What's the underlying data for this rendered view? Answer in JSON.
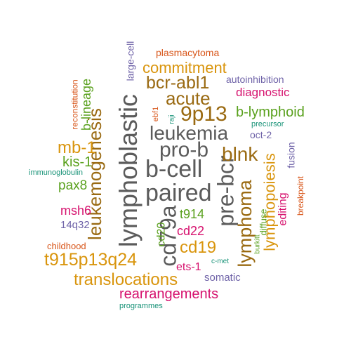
{
  "colors": {
    "gray": "#5b5b5b",
    "gold": "#d9950d",
    "brown": "#9a6a12",
    "green": "#5aa11e",
    "magenta": "#d6126e",
    "purple": "#6f63a8",
    "orange": "#d8561a",
    "teal": "#199378"
  },
  "words": [
    {
      "text": "paired",
      "color": "gray"
    },
    {
      "text": "b-cell",
      "color": "gray"
    },
    {
      "text": "pro-b",
      "color": "gray"
    },
    {
      "text": "leukemia",
      "color": "gray"
    },
    {
      "text": "lymphoblastic",
      "color": "gray"
    },
    {
      "text": "cd79a",
      "color": "gray"
    },
    {
      "text": "pre-bcr",
      "color": "gray"
    },
    {
      "text": "leukemogenesis",
      "color": "brown"
    },
    {
      "text": "lymphoma",
      "color": "brown"
    },
    {
      "text": "blnk",
      "color": "brown"
    },
    {
      "text": "9p13",
      "color": "brown"
    },
    {
      "text": "acute",
      "color": "brown"
    },
    {
      "text": "bcr-abl1",
      "color": "brown"
    },
    {
      "text": "commitment",
      "color": "gold"
    },
    {
      "text": "translocations",
      "color": "gold"
    },
    {
      "text": "t915p13q24",
      "color": "gold"
    },
    {
      "text": "cd19",
      "color": "gold"
    },
    {
      "text": "mb-1",
      "color": "gold"
    },
    {
      "text": "lymphopoiesis",
      "color": "gold"
    },
    {
      "text": "rearrangements",
      "color": "magenta"
    },
    {
      "text": "kis-1",
      "color": "green"
    },
    {
      "text": "pax8",
      "color": "green"
    },
    {
      "text": "b-lymphoid",
      "color": "green"
    },
    {
      "text": "b-lineage",
      "color": "green"
    },
    {
      "text": "t914",
      "color": "green"
    },
    {
      "text": "cd20",
      "color": "green"
    },
    {
      "text": "cd22",
      "color": "magenta"
    },
    {
      "text": "diagnostic",
      "color": "magenta"
    },
    {
      "text": "msh6",
      "color": "magenta"
    },
    {
      "text": "ets-1",
      "color": "magenta"
    },
    {
      "text": "editing",
      "color": "magenta"
    },
    {
      "text": "plasmacytoma",
      "color": "orange"
    },
    {
      "text": "childhood",
      "color": "orange"
    },
    {
      "text": "reconstitution",
      "color": "orange"
    },
    {
      "text": "ebf1",
      "color": "orange"
    },
    {
      "text": "breakpoint",
      "color": "orange"
    },
    {
      "text": "large-cell",
      "color": "purple"
    },
    {
      "text": "autoinhibition",
      "color": "purple"
    },
    {
      "text": "oct-2",
      "color": "purple"
    },
    {
      "text": "fusion",
      "color": "purple"
    },
    {
      "text": "14q32",
      "color": "purple"
    },
    {
      "text": "somatic",
      "color": "purple"
    },
    {
      "text": "immunoglobulin",
      "color": "teal"
    },
    {
      "text": "precursor",
      "color": "teal"
    },
    {
      "text": "raji",
      "color": "teal"
    },
    {
      "text": "programmes",
      "color": "teal"
    },
    {
      "text": "c-met",
      "color": "teal"
    },
    {
      "text": "burkitt",
      "color": "green"
    },
    {
      "text": "diffuse",
      "color": "green"
    }
  ]
}
